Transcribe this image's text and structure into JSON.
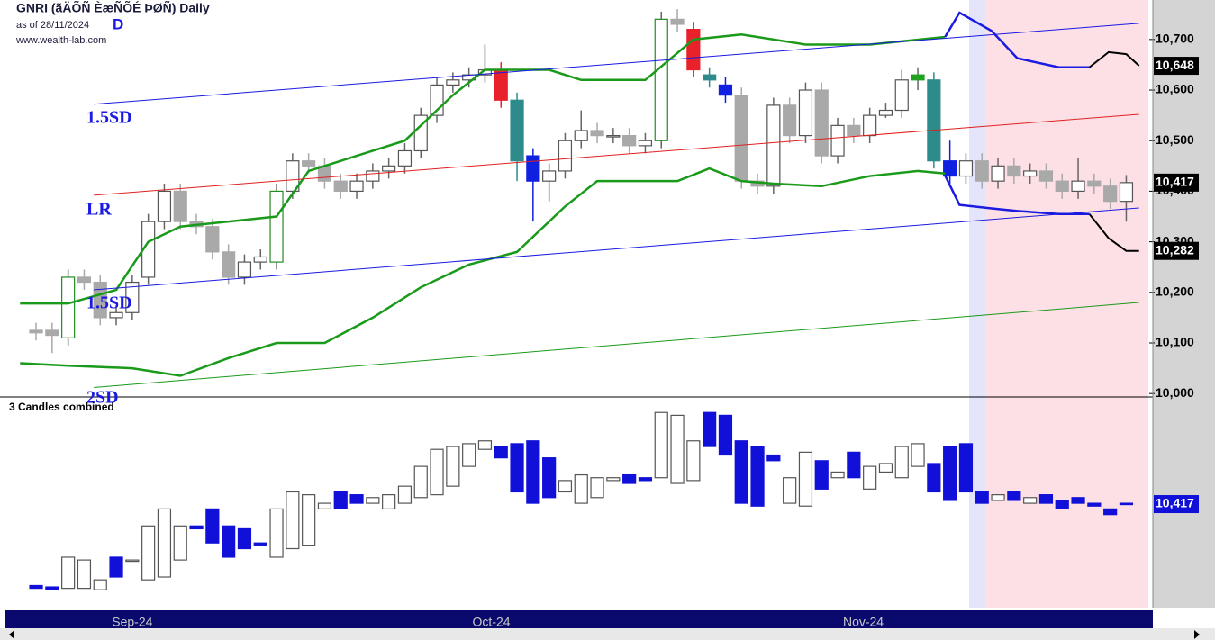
{
  "header": {
    "title": "GNRI (ãÄÕÑ ÈæÑÕÉ ÞØÑ) Daily",
    "as_of": "as of 28/11/2024",
    "scale": "D",
    "site": "www.wealth-lab.com"
  },
  "chart_data": [
    {
      "type": "candlestick",
      "xlim": [
        -1.8,
        69.66
      ],
      "ylim": [
        9995,
        10778
      ],
      "xticks": [
        {
          "value": 6,
          "label": "Sep-24"
        },
        {
          "value": 28.4,
          "label": "Oct-24"
        },
        {
          "value": 51.6,
          "label": "Nov-24"
        }
      ],
      "yticks": [
        {
          "value": 10000,
          "label": "10,000"
        },
        {
          "value": 10100,
          "label": "10,100"
        },
        {
          "value": 10200,
          "label": "10,200"
        },
        {
          "value": 10300,
          "label": "10,300"
        },
        {
          "value": 10400,
          "label": "10,400"
        },
        {
          "value": 10500,
          "label": "10,500"
        },
        {
          "value": 10600,
          "label": "10,600"
        },
        {
          "value": 10700,
          "label": "10,700"
        }
      ],
      "up_color": "#ffffff",
      "down_color": "#a9a9a9",
      "open": [
        10125,
        10125,
        10110,
        10230,
        10220,
        10150,
        10160,
        10230,
        10340,
        10400,
        10340,
        10330,
        10280,
        10230,
        10260,
        10260,
        10400,
        10460,
        10450,
        10420,
        10400,
        10420,
        10440,
        10450,
        10480,
        10550,
        10610,
        10620,
        10630,
        10640,
        10580,
        10470,
        10420,
        10440,
        10500,
        10520,
        10510,
        10510,
        10490,
        10500,
        10740,
        10720,
        10630,
        10610,
        10590,
        10420,
        10410,
        10570,
        10510,
        10600,
        10470,
        10530,
        10510,
        10550,
        10560,
        10620,
        10620,
        10460,
        10430,
        10460,
        10420,
        10450,
        10430,
        10440,
        10420,
        10400,
        10420,
        10410,
        10380
      ],
      "high": [
        10140,
        10140,
        10245,
        10245,
        10235,
        10175,
        10235,
        10355,
        10415,
        10415,
        10355,
        10345,
        10295,
        10275,
        10285,
        10415,
        10475,
        10475,
        10465,
        10435,
        10435,
        10455,
        10465,
        10495,
        10565,
        10625,
        10635,
        10645,
        10690,
        10655,
        10595,
        10485,
        10455,
        10515,
        10560,
        10535,
        10525,
        10525,
        10515,
        10755,
        10760,
        10735,
        10645,
        10625,
        10605,
        10435,
        10585,
        10585,
        10615,
        10615,
        10545,
        10545,
        10565,
        10575,
        10640,
        10645,
        10635,
        10500,
        10475,
        10475,
        10465,
        10465,
        10455,
        10455,
        10435,
        10465,
        10435,
        10425,
        10432
      ],
      "low": [
        10105,
        10080,
        10095,
        10205,
        10135,
        10135,
        10145,
        10215,
        10325,
        10325,
        10315,
        10265,
        10215,
        10215,
        10245,
        10245,
        10385,
        10435,
        10405,
        10385,
        10385,
        10405,
        10425,
        10435,
        10465,
        10535,
        10595,
        10605,
        10615,
        10565,
        10420,
        10340,
        10380,
        10425,
        10485,
        10495,
        10495,
        10475,
        10475,
        10485,
        10715,
        10625,
        10605,
        10575,
        10405,
        10395,
        10395,
        10495,
        10495,
        10455,
        10455,
        10495,
        10495,
        10545,
        10545,
        10600,
        10445,
        10415,
        10415,
        10405,
        10405,
        10415,
        10415,
        10405,
        10385,
        10385,
        10395,
        10365,
        10340
      ],
      "close": [
        10120,
        10115,
        10230,
        10220,
        10150,
        10160,
        10220,
        10340,
        10400,
        10340,
        10330,
        10280,
        10230,
        10260,
        10270,
        10400,
        10460,
        10450,
        10420,
        10400,
        10420,
        10440,
        10450,
        10480,
        10550,
        10610,
        10620,
        10630,
        10640,
        10580,
        10460,
        10420,
        10440,
        10500,
        10520,
        10510,
        10510,
        10490,
        10500,
        10740,
        10730,
        10640,
        10620,
        10590,
        10420,
        10410,
        10570,
        10510,
        10600,
        10470,
        10530,
        10510,
        10550,
        10560,
        10620,
        10630,
        10460,
        10430,
        10460,
        10420,
        10450,
        10430,
        10440,
        10420,
        10400,
        10420,
        10410,
        10380,
        10417
      ],
      "last_close_label": "10,417",
      "highlights": [
        {
          "index": 2,
          "color": "#228b22",
          "outline": true
        },
        {
          "index": 15,
          "color": "#228b22",
          "outline": true
        },
        {
          "index": 29,
          "color": "#e8212a",
          "outline": false
        },
        {
          "index": 30,
          "color": "#2e8b8b",
          "outline": false
        },
        {
          "index": 31,
          "color": "#1020e0",
          "outline": false
        },
        {
          "index": 39,
          "color": "#228b22",
          "outline": true
        },
        {
          "index": 41,
          "color": "#e8212a",
          "outline": false
        },
        {
          "index": 42,
          "color": "#2e8b8b",
          "outline": false
        },
        {
          "index": 43,
          "color": "#1020e0",
          "outline": false
        },
        {
          "index": 55,
          "color": "#22a022",
          "outline": false
        },
        {
          "index": 56,
          "color": "#2e8b8b",
          "outline": false
        },
        {
          "index": 57,
          "color": "#1020e0",
          "outline": false
        }
      ],
      "lines": [
        {
          "color": "#1a9a1a",
          "width": 2.5,
          "x": [
            -1,
            2,
            5,
            7,
            9,
            12,
            15,
            17,
            20,
            23,
            26,
            28,
            32,
            34,
            38,
            41,
            44,
            48,
            52,
            56.7
          ],
          "values": [
            10178,
            10178,
            10205,
            10300,
            10330,
            10340,
            10350,
            10440,
            10470,
            10500,
            10590,
            10640,
            10640,
            10620,
            10620,
            10700,
            10710,
            10690,
            10690,
            10705
          ]
        },
        {
          "color": "#1a9a1a",
          "width": 2.5,
          "x": [
            -1,
            2,
            6,
            9,
            12,
            15,
            18,
            21,
            24,
            27,
            30,
            33,
            35,
            38,
            40,
            42,
            44,
            46,
            49,
            52,
            55,
            56.7
          ],
          "values": [
            10060,
            10055,
            10050,
            10035,
            10070,
            10100,
            10100,
            10150,
            10210,
            10255,
            10280,
            10370,
            10420,
            10420,
            10420,
            10445,
            10420,
            10415,
            10410,
            10430,
            10440,
            10435
          ]
        },
        {
          "color": "#1a1ae0",
          "width": 2.5,
          "x": [
            56.7,
            57.6,
            59.6,
            61.2,
            63.8,
            65.7
          ],
          "values": [
            10705,
            10753,
            10717,
            10663,
            10645,
            10645
          ]
        },
        {
          "color": "#000000",
          "width": 2,
          "x": [
            65.7,
            66.9,
            68,
            68.8
          ],
          "values": [
            10645,
            10675,
            10671,
            10648
          ],
          "last_label": "10,648"
        },
        {
          "color": "#1a1ae0",
          "width": 2.5,
          "x": [
            56.7,
            57.6,
            59.6,
            61.2,
            63.8,
            65.7
          ],
          "values": [
            10431,
            10373,
            10366,
            10361,
            10355,
            10355
          ]
        },
        {
          "color": "#000000",
          "width": 2,
          "x": [
            65.7,
            66.9,
            68,
            68.8
          ],
          "values": [
            10355,
            10307,
            10282,
            10282
          ],
          "last_label": "10,282"
        },
        {
          "color": "#e02020",
          "width": 1,
          "x": [
            3.6,
            68.8
          ],
          "values": [
            10392,
            10552
          ]
        },
        {
          "color": "#1a1ae0",
          "width": 1,
          "x": [
            3.6,
            68.8
          ],
          "values": [
            10572,
            10732
          ]
        },
        {
          "color": "#1a1ae0",
          "width": 1,
          "x": [
            3.6,
            68.8
          ],
          "values": [
            10205,
            10367
          ]
        },
        {
          "color": "#1a9a1a",
          "width": 1,
          "x": [
            3.6,
            68.8
          ],
          "values": [
            10012,
            10180
          ]
        }
      ],
      "annotations": [
        "1.5SD",
        "LR",
        "1.5SD",
        "2SD"
      ]
    },
    {
      "type": "candlestick",
      "title": "3 Candles combined",
      "xlim": [
        -1.8,
        69.66
      ],
      "ylim": [
        10049,
        10782
      ],
      "up_color": "#ffffff",
      "down_color": "#1010d8",
      "open": [
        10130,
        10125,
        10120,
        10120,
        10115,
        10230,
        10220,
        10150,
        10160,
        10220,
        10340,
        10400,
        10340,
        10330,
        10280,
        10230,
        10260,
        10270,
        10400,
        10460,
        10450,
        10420,
        10400,
        10420,
        10440,
        10450,
        10480,
        10550,
        10610,
        10620,
        10630,
        10640,
        10580,
        10460,
        10420,
        10440,
        10500,
        10520,
        10510,
        10510,
        10490,
        10500,
        10740,
        10730,
        10640,
        10620,
        10590,
        10420,
        10410,
        10570,
        10510,
        10600,
        10470,
        10530,
        10510,
        10550,
        10560,
        10620,
        10630,
        10460,
        10430,
        10460,
        10420,
        10450,
        10430,
        10440,
        10420,
        10400,
        10420
      ],
      "close": [
        10120,
        10115,
        10230,
        10220,
        10150,
        10160,
        10220,
        10340,
        10400,
        10340,
        10330,
        10280,
        10230,
        10260,
        10270,
        10400,
        10460,
        10450,
        10420,
        10400,
        10420,
        10440,
        10450,
        10480,
        10550,
        10610,
        10620,
        10630,
        10640,
        10580,
        10460,
        10420,
        10440,
        10500,
        10520,
        10510,
        10510,
        10490,
        10500,
        10740,
        10730,
        10640,
        10620,
        10590,
        10420,
        10410,
        10570,
        10510,
        10600,
        10470,
        10530,
        10510,
        10550,
        10560,
        10620,
        10630,
        10460,
        10430,
        10460,
        10420,
        10450,
        10430,
        10440,
        10420,
        10400,
        10420,
        10410,
        10380,
        10417
      ],
      "last_close_label": "10,417"
    }
  ]
}
